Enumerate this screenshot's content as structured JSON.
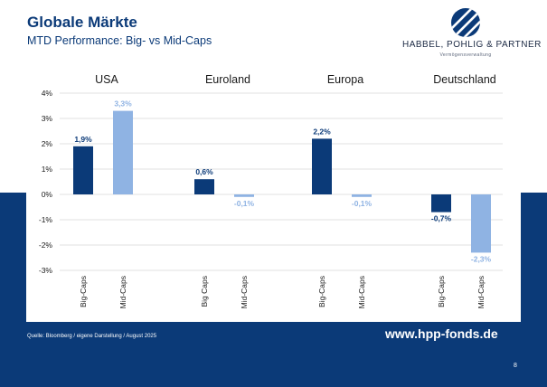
{
  "header": {
    "title": "Globale Märkte",
    "subtitle": "MTD Performance: Big- vs Mid-Caps"
  },
  "logo": {
    "name": "HABBEL, POHLIG & PARTNER",
    "tagline": "Vermögensverwaltung",
    "icon": "sphere-stripes-logo"
  },
  "colors": {
    "brand_navy": "#0b3a78",
    "big_caps": "#0b3a78",
    "mid_caps": "#8fb3e3",
    "grid": "#d9d9d9"
  },
  "chart_data": {
    "type": "bar",
    "title": "MTD Performance: Big- vs Mid-Caps",
    "ylim": [
      -3,
      4
    ],
    "y_ticks": [
      "4%",
      "3%",
      "2%",
      "1%",
      "0%",
      "-1%",
      "-2%",
      "-3%"
    ],
    "y_tick_values": [
      4,
      3,
      2,
      1,
      0,
      -1,
      -2,
      -3
    ],
    "grid": true,
    "groups": [
      {
        "name": "USA",
        "bars": [
          {
            "label": "Big-Caps",
            "value": 1.9,
            "display": "1,9%",
            "series": "big"
          },
          {
            "label": "Mid-Caps",
            "value": 3.3,
            "display": "3,3%",
            "series": "mid"
          }
        ]
      },
      {
        "name": "Euroland",
        "bars": [
          {
            "label": "Big Caps",
            "value": 0.6,
            "display": "0,6%",
            "series": "big"
          },
          {
            "label": "Mid-Caps",
            "value": -0.1,
            "display": "-0,1%",
            "series": "mid"
          }
        ]
      },
      {
        "name": "Europa",
        "bars": [
          {
            "label": "Big-Caps",
            "value": 2.2,
            "display": "2,2%",
            "series": "big"
          },
          {
            "label": "Mid-Caps",
            "value": -0.1,
            "display": "-0,1%",
            "series": "mid"
          }
        ]
      },
      {
        "name": "Deutschland",
        "bars": [
          {
            "label": "Big-Caps",
            "value": -0.7,
            "display": "-0,7%",
            "series": "big"
          },
          {
            "label": "Mid-Caps",
            "value": -2.3,
            "display": "-2,3%",
            "series": "mid"
          }
        ]
      }
    ]
  },
  "footer": {
    "source": "Quelle: Bloomberg / eigene Darstellung / August 2025",
    "website": "www.hpp-fonds.de",
    "page_number": "8"
  }
}
